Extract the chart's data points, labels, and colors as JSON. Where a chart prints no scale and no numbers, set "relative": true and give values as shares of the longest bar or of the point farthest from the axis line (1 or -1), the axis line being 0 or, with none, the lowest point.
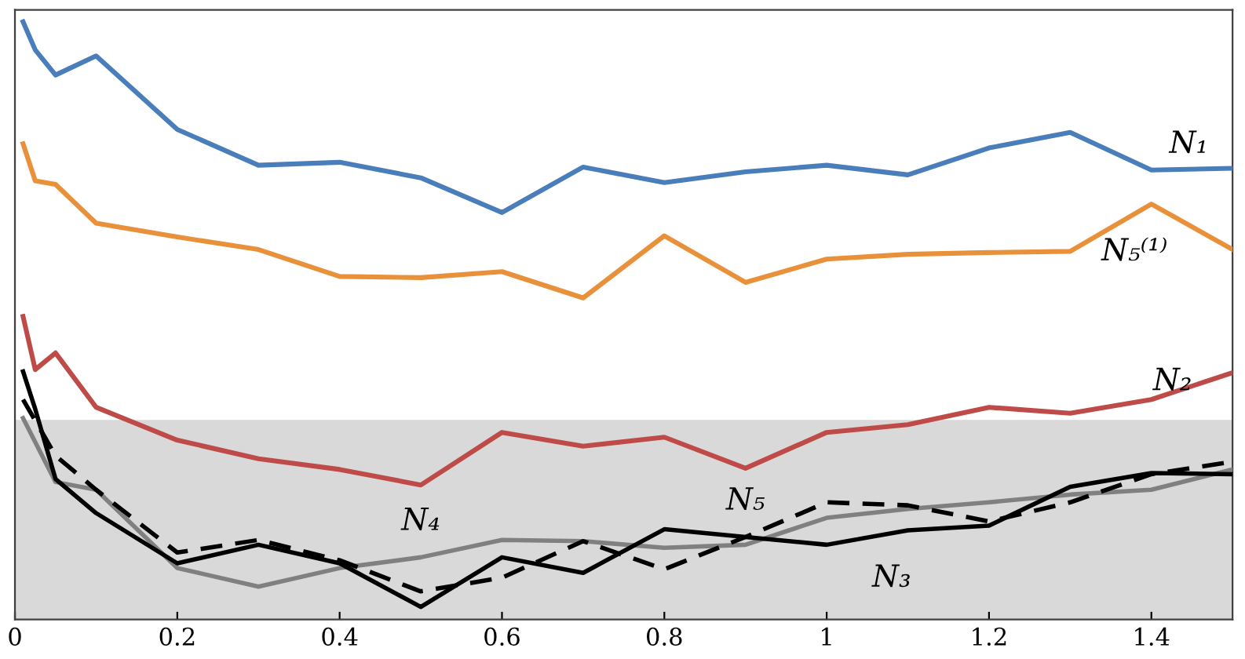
{
  "chart_data": {
    "type": "line",
    "relative": true,
    "x": [
      0.01,
      0.025,
      0.05,
      0.1,
      0.2,
      0.3,
      0.4,
      0.5,
      0.6,
      0.7,
      0.8,
      0.9,
      1.0,
      1.1,
      1.2,
      1.3,
      1.4,
      1.5
    ],
    "series": [
      {
        "name": "N₁",
        "color": "#4a7ebb",
        "values": [
          1.0,
          0.953,
          0.911,
          0.943,
          0.82,
          0.76,
          0.765,
          0.739,
          0.681,
          0.757,
          0.731,
          0.749,
          0.76,
          0.744,
          0.789,
          0.815,
          0.752,
          0.755
        ]
      },
      {
        "name": "N₅⁽¹⁾",
        "color": "#e8913a",
        "values": [
          0.796,
          0.734,
          0.728,
          0.663,
          0.64,
          0.619,
          0.574,
          0.572,
          0.582,
          0.538,
          0.642,
          0.564,
          0.603,
          0.611,
          0.614,
          0.616,
          0.695,
          0.619
        ]
      },
      {
        "name": "N₂",
        "color": "#be4b48",
        "values": [
          0.507,
          0.418,
          0.446,
          0.355,
          0.3,
          0.269,
          0.251,
          0.225,
          0.313,
          0.29,
          0.305,
          0.253,
          0.313,
          0.326,
          0.355,
          0.345,
          0.368,
          0.413
        ]
      },
      {
        "name": "N₄",
        "color": "#808080",
        "x": [
          0.01,
          0.05,
          0.1,
          0.2,
          0.3,
          0.4,
          0.5,
          0.6,
          0.7,
          0.8,
          0.9,
          1.0,
          1.1,
          1.2,
          1.3,
          1.4,
          1.5
        ],
        "values": [
          0.337,
          0.23,
          0.217,
          0.086,
          0.055,
          0.086,
          0.104,
          0.133,
          0.131,
          0.12,
          0.125,
          0.17,
          0.185,
          0.196,
          0.209,
          0.217,
          0.251
        ]
      },
      {
        "name": "N₅",
        "color": "#000000",
        "line_style": "dashed",
        "x": [
          0.01,
          0.05,
          0.1,
          0.2,
          0.3,
          0.4,
          0.5,
          0.6,
          0.7,
          0.8,
          0.9,
          1.0,
          1.1,
          1.2,
          1.3,
          1.4,
          1.5
        ],
        "values": [
          0.368,
          0.274,
          0.217,
          0.112,
          0.133,
          0.099,
          0.047,
          0.07,
          0.131,
          0.084,
          0.138,
          0.196,
          0.191,
          0.164,
          0.196,
          0.243,
          0.264
        ]
      },
      {
        "name": "N₃",
        "color": "#000000",
        "values": [
          0.415,
          0.352,
          0.235,
          0.178,
          0.094,
          0.125,
          0.094,
          0.021,
          0.104,
          0.078,
          0.151,
          0.138,
          0.125,
          0.149,
          0.157,
          0.222,
          0.245,
          0.243
        ]
      }
    ],
    "xlim": [
      0,
      1.5
    ],
    "xticks": [
      0,
      0.2,
      0.4,
      0.6,
      0.8,
      1,
      1.2,
      1.4
    ],
    "tick_labels": "x",
    "grid": false,
    "legend": false,
    "marker": "none",
    "line_style": "solid",
    "bands": [
      {
        "axis": "y",
        "from": 0,
        "to": 0.334,
        "color": "#d9d9d9"
      }
    ]
  }
}
